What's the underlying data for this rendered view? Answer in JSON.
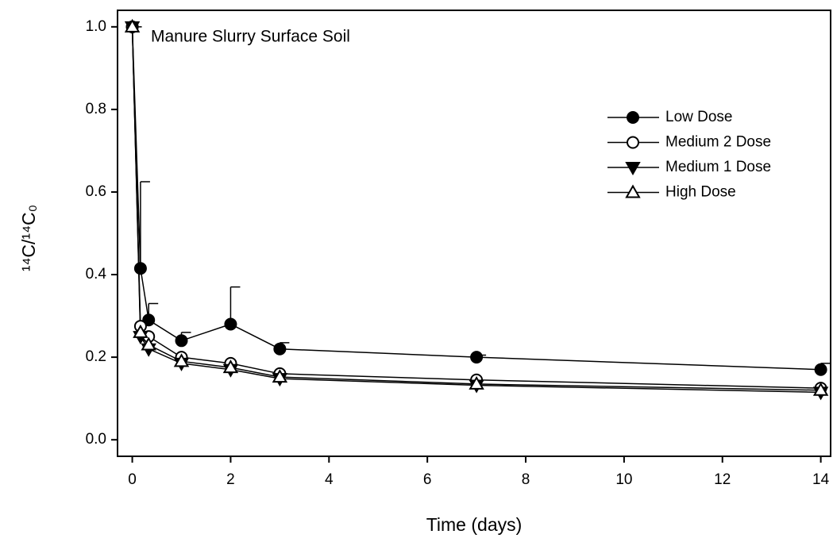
{
  "chart_data": {
    "type": "line",
    "annotation": "Manure Slurry Surface Soil",
    "x_label": "Time (days)",
    "y_label": "¹⁴C/¹⁴C₀",
    "x": [
      0,
      0.167,
      0.333,
      1,
      2,
      3,
      7,
      14
    ],
    "series": [
      {
        "name": "Low Dose",
        "color": "#000000",
        "marker": "circle",
        "filled": true,
        "values": [
          1.0,
          0.415,
          0.29,
          0.24,
          0.28,
          0.22,
          0.2,
          0.17
        ],
        "errors": [
          0,
          0.21,
          0.04,
          0.02,
          0.09,
          0.015,
          0.005,
          0.015
        ]
      },
      {
        "name": "Medium 2 Dose",
        "color": "#000000",
        "marker": "circle",
        "filled": false,
        "values": [
          1.0,
          0.275,
          0.25,
          0.2,
          0.185,
          0.16,
          0.145,
          0.125
        ]
      },
      {
        "name": "Medium 1 Dose",
        "color": "#000000",
        "marker": "triangle-down",
        "filled": true,
        "values": [
          1.0,
          0.25,
          0.22,
          0.185,
          0.17,
          0.148,
          0.132,
          0.115
        ]
      },
      {
        "name": "High Dose",
        "color": "#000000",
        "marker": "triangle-up",
        "filled": false,
        "values": [
          1.0,
          0.26,
          0.23,
          0.19,
          0.175,
          0.152,
          0.135,
          0.12
        ]
      }
    ],
    "xlim": [
      -0.3,
      14.2
    ],
    "ylim": [
      -0.04,
      1.04
    ],
    "xticks": [
      0,
      2,
      4,
      6,
      8,
      10,
      12,
      14
    ],
    "yticks": [
      {
        "value": 0,
        "label": "0.0"
      },
      0.2,
      0.4,
      0.6,
      0.8,
      {
        "value": 1,
        "label": "1.0"
      }
    ],
    "legend": "upper-right"
  }
}
